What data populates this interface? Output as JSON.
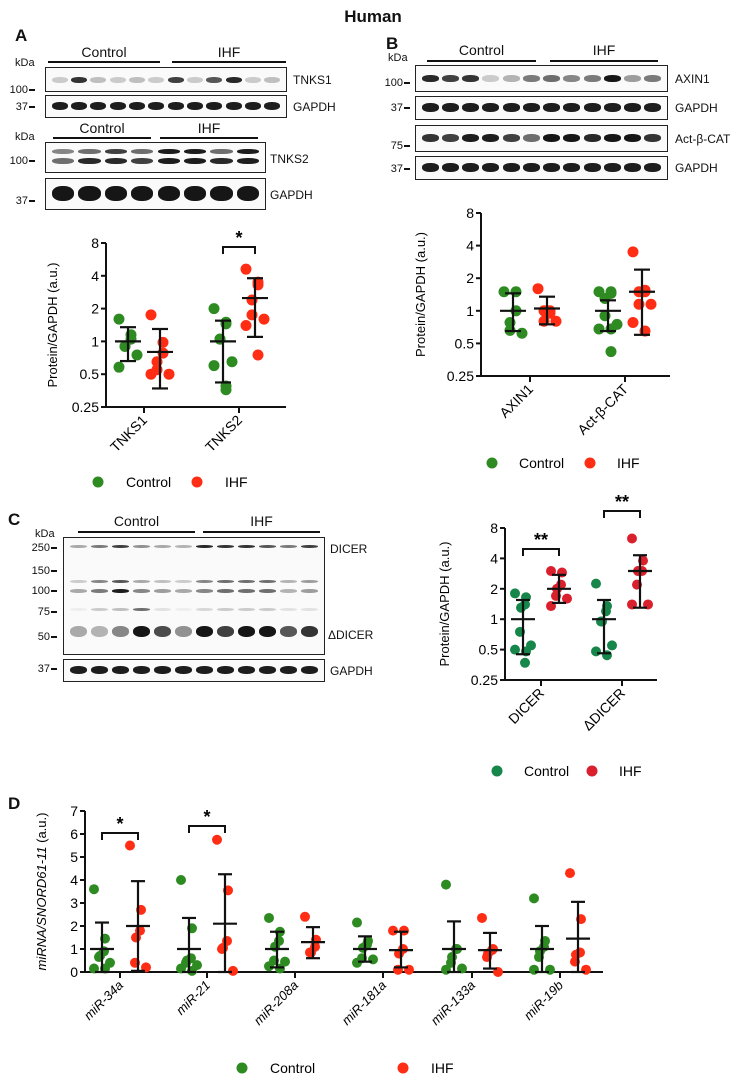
{
  "figure_title": "Human",
  "colors": {
    "control": "#2e8b22",
    "ihf": "#ff2d14",
    "control_c": "#17864a",
    "ihf_c": "#d9202c"
  },
  "panels": {
    "A": {
      "label": "A",
      "blot1": {
        "kda": "kDa",
        "group_control": "Control",
        "group_ihf": "IHF",
        "markers": [
          "100",
          "37"
        ],
        "bands": [
          "TNKS1",
          "GAPDH"
        ]
      },
      "blot2": {
        "kda": "kDa",
        "group_control": "Control",
        "group_ihf": "IHF",
        "markers": [
          "100",
          "37"
        ],
        "bands": [
          "TNKS2",
          "GAPDH"
        ]
      }
    },
    "B": {
      "label": "B",
      "blot": {
        "kda": "kDa",
        "group_control": "Control",
        "group_ihf": "IHF",
        "markers": [
          "100",
          "37",
          "75",
          "37"
        ],
        "bands": [
          "AXIN1",
          "GAPDH",
          "Act-β-CAT",
          "GAPDH"
        ]
      }
    },
    "C": {
      "label": "C",
      "blot": {
        "kda": "kDa",
        "group_control": "Control",
        "group_ihf": "IHF",
        "markers": [
          "250",
          "150",
          "100",
          "75",
          "50",
          "37"
        ],
        "bands": [
          "DICER",
          "ΔDICER",
          "GAPDH"
        ]
      }
    },
    "D": {
      "label": "D"
    }
  },
  "chart_data": [
    {
      "id": "A",
      "type": "scatter",
      "scale": "log2",
      "ylabel": "Protein/GAPDH (a.u.)",
      "ylim": [
        0.25,
        8
      ],
      "yticks": [
        "0.25",
        "0.5",
        "1",
        "2",
        "4",
        "8"
      ],
      "yticks_values": [
        0.25,
        0.5,
        1,
        2,
        4,
        8
      ],
      "categories": [
        "TNKS1",
        "TNKS2"
      ],
      "legend": [
        "Control",
        "IHF"
      ],
      "series": [
        {
          "name": "Control",
          "mean": [
            1.0,
            1.0
          ],
          "sd_low": [
            0.66,
            0.42
          ],
          "sd_high": [
            1.35,
            1.55
          ],
          "points": [
            [
              1.6,
              1.15,
              1.05,
              0.9,
              0.9,
              0.75,
              0.58
            ],
            [
              2.0,
              1.45,
              1.5,
              1.05,
              1.05,
              0.65,
              0.6,
              0.36,
              0.39
            ]
          ]
        },
        {
          "name": "IHF",
          "mean": [
            0.8,
            2.5
          ],
          "sd_low": [
            0.37,
            1.1
          ],
          "sd_high": [
            1.3,
            3.8
          ],
          "points": [
            [
              1.75,
              0.98,
              0.78,
              0.65,
              0.55,
              0.5,
              0.5
            ],
            [
              4.6,
              3.5,
              3.3,
              2.4,
              1.75,
              1.6,
              1.4,
              0.75
            ]
          ]
        }
      ],
      "significance": [
        {
          "category": "TNKS2",
          "label": "*"
        }
      ]
    },
    {
      "id": "B",
      "type": "scatter",
      "scale": "log2",
      "ylabel": "Protein/GAPDH (a.u.)",
      "ylim": [
        0.25,
        8
      ],
      "yticks": [
        "0.25",
        "0.5",
        "1",
        "2",
        "4",
        "8"
      ],
      "yticks_values": [
        0.25,
        0.5,
        1,
        2,
        4,
        8
      ],
      "categories": [
        "AXIN1",
        "Act-β-CAT"
      ],
      "legend": [
        "Control",
        "IHF"
      ],
      "series": [
        {
          "name": "Control",
          "mean": [
            1.0,
            1.0
          ],
          "sd_low": [
            0.65,
            0.65
          ],
          "sd_high": [
            1.45,
            1.25
          ],
          "points": [
            [
              1.5,
              1.5,
              1.0,
              0.78,
              0.66,
              0.62
            ],
            [
              1.5,
              1.45,
              1.5,
              1.3,
              0.9,
              0.75,
              0.68,
              0.68,
              0.42
            ]
          ]
        },
        {
          "name": "IHF",
          "mean": [
            1.05,
            1.5
          ],
          "sd_low": [
            0.75,
            0.6
          ],
          "sd_high": [
            1.35,
            2.4
          ],
          "points": [
            [
              1.6,
              1.0,
              0.95,
              1.0,
              0.8,
              0.8
            ],
            [
              3.5,
              1.55,
              1.5,
              1.5,
              1.15,
              1.15,
              0.78,
              0.65
            ]
          ]
        }
      ]
    },
    {
      "id": "C",
      "type": "scatter",
      "scale": "log2",
      "ylabel": "Protein/GAPDH (a.u.)",
      "ylim": [
        0.25,
        8
      ],
      "yticks": [
        "0.25",
        "0.5",
        "1",
        "2",
        "4",
        "8"
      ],
      "yticks_values": [
        0.25,
        0.5,
        1,
        2,
        4,
        8
      ],
      "categories": [
        "DICER",
        "ΔDICER"
      ],
      "legend": [
        "Control",
        "IHF"
      ],
      "series": [
        {
          "name": "Control",
          "mean": [
            1.0,
            1.0
          ],
          "sd_low": [
            0.45,
            0.46
          ],
          "sd_high": [
            1.55,
            1.55
          ],
          "points": [
            [
              1.8,
              1.65,
              1.4,
              1.3,
              0.75,
              0.55,
              0.5,
              0.48,
              0.37
            ],
            [
              2.25,
              1.35,
              1.2,
              0.95,
              0.95,
              0.55,
              0.48,
              0.44
            ]
          ]
        },
        {
          "name": "IHF",
          "mean": [
            2.0,
            3.0
          ],
          "sd_low": [
            1.45,
            1.3
          ],
          "sd_high": [
            2.75,
            4.3
          ],
          "points": [
            [
              3.0,
              2.9,
              2.2,
              2.0,
              1.7,
              1.6,
              1.35
            ],
            [
              6.3,
              3.8,
              3.0,
              3.0,
              2.2,
              1.4,
              1.4
            ]
          ]
        }
      ],
      "significance": [
        {
          "category": "DICER",
          "label": "**"
        },
        {
          "category": "ΔDICER",
          "label": "**"
        }
      ]
    },
    {
      "id": "D",
      "type": "scatter",
      "scale": "linear",
      "ylabel_italic": "miRNA/SNORD61-11",
      "ylabel_suffix": " (a.u.)",
      "ylim": [
        0,
        7
      ],
      "yticks": [
        "0",
        "1",
        "2",
        "3",
        "4",
        "5",
        "6",
        "7"
      ],
      "yticks_values": [
        0,
        1,
        2,
        3,
        4,
        5,
        6,
        7
      ],
      "categories": [
        "miR-34a",
        "miR-21",
        "miR-208a",
        "miR-181a",
        "miR-133a",
        "miR-19b"
      ],
      "legend": [
        "Control",
        "IHF"
      ],
      "series": [
        {
          "name": "Control",
          "mean": [
            1.0,
            1.0,
            1.0,
            1.0,
            1.0,
            1.0
          ],
          "sd_low": [
            0.0,
            0.0,
            0.2,
            0.45,
            0.0,
            0.0
          ],
          "sd_high": [
            2.15,
            2.35,
            1.75,
            1.55,
            2.2,
            2.0
          ],
          "points": [
            [
              3.6,
              1.45,
              0.9,
              0.7,
              0.65,
              0.4,
              0.15,
              0.15
            ],
            [
              4.0,
              1.9,
              0.6,
              0.5,
              0.4,
              0.3,
              0.15,
              0.05
            ],
            [
              2.35,
              1.75,
              1.35,
              1.1,
              0.5,
              0.45,
              0.25,
              0.15
            ],
            [
              2.15,
              1.35,
              1.2,
              1.05,
              0.6,
              0.55,
              0.4
            ],
            [
              3.8,
              1.0,
              1.0,
              0.65,
              0.4,
              0.15,
              0.1
            ],
            [
              3.2,
              1.35,
              1.1,
              0.9,
              0.65,
              0.1,
              0.1
            ]
          ]
        },
        {
          "name": "IHF",
          "mean": [
            2.0,
            2.1,
            1.3,
            0.95,
            0.95,
            1.45
          ],
          "sd_low": [
            0.05,
            0.0,
            0.6,
            0.2,
            0.15,
            0.0
          ],
          "sd_high": [
            3.95,
            4.25,
            1.95,
            1.75,
            1.7,
            3.05
          ],
          "points": [
            [
              5.5,
              2.7,
              1.8,
              1.5,
              0.4,
              0.2
            ],
            [
              5.75,
              3.55,
              1.35,
              1.05,
              1.0,
              0.05
            ],
            [
              2.4,
              1.4,
              1.1,
              0.85,
              0.85
            ],
            [
              1.8,
              1.8,
              1.0,
              0.8,
              0.1,
              0.1
            ],
            [
              2.35,
              1.0,
              0.95,
              0.8,
              0.65,
              0.0
            ],
            [
              4.3,
              2.3,
              0.85,
              0.75,
              0.45,
              0.1
            ]
          ]
        }
      ],
      "significance": [
        {
          "category": "miR-34a",
          "label": "*"
        },
        {
          "category": "miR-21",
          "label": "*"
        }
      ]
    }
  ]
}
